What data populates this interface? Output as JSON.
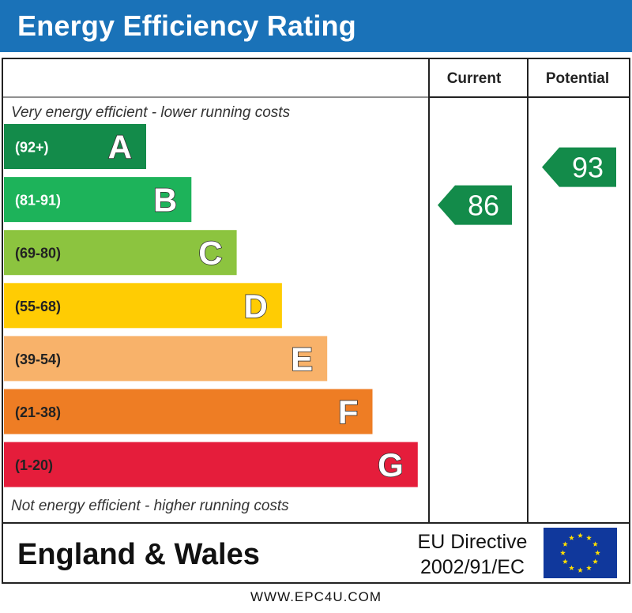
{
  "title": "Energy Efficiency Rating",
  "headers": {
    "current": "Current",
    "potential": "Potential"
  },
  "notes": {
    "top": "Very energy efficient - lower running costs",
    "bottom": "Not energy efficient - higher running costs"
  },
  "footer": {
    "region": "England & Wales",
    "directive_line1": "EU Directive",
    "directive_line2": "2002/91/EC",
    "url": "WWW.EPC4U.COM"
  },
  "chart_data": {
    "type": "bar",
    "title": "Energy Efficiency Rating",
    "bands": [
      {
        "letter": "A",
        "range": "(92+)",
        "color": "#138b4a",
        "range_color": "#ffffff"
      },
      {
        "letter": "B",
        "range": "(81-91)",
        "color": "#1db35a",
        "range_color": "#ffffff"
      },
      {
        "letter": "C",
        "range": "(69-80)",
        "color": "#8cc43f",
        "range_color": "#222222"
      },
      {
        "letter": "D",
        "range": "(55-68)",
        "color": "#ffcc03",
        "range_color": "#222222"
      },
      {
        "letter": "E",
        "range": "(39-54)",
        "color": "#f8b26a",
        "range_color": "#222222"
      },
      {
        "letter": "F",
        "range": "(21-38)",
        "color": "#ee7d24",
        "range_color": "#222222"
      },
      {
        "letter": "G",
        "range": "(1-20)",
        "color": "#e51d3b",
        "range_color": "#222222"
      }
    ],
    "current": {
      "value": 86,
      "band": "B",
      "color": "#138b4a"
    },
    "potential": {
      "value": 93,
      "band": "A",
      "color": "#138b4a"
    }
  }
}
